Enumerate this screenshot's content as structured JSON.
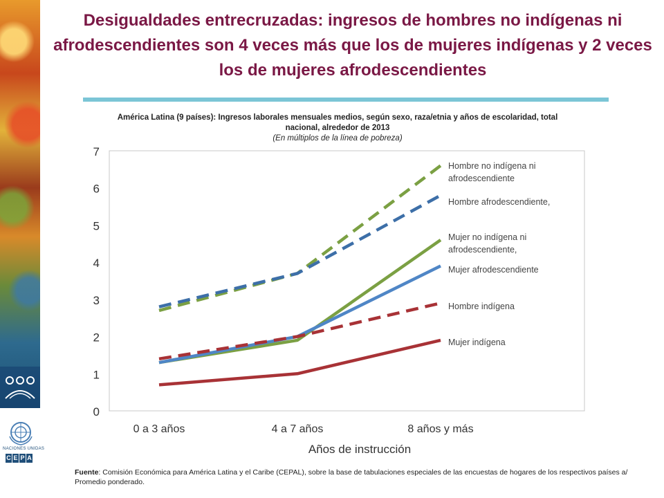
{
  "title": "Desigualdades entrecruzadas: ingresos de hombres no indígenas ni afrodescendientes son 4 veces más que los de mujeres indígenas y 2 veces los de mujeres afrodescendientes",
  "subtitle": {
    "line": "América Latina (9 países): Ingresos laborales mensuales medios, según sexo, raza/etnia y años de escolaridad, total nacional, alrededor de 2013",
    "unit": "(En múltiplos de la línea de pobreza)"
  },
  "source": {
    "label": "Fuente",
    "text": ": Comisión Económica para América Latina y el Caribe (CEPAL), sobre la base de tabulaciones especiales de las encuestas de hogares de los respectivos países a/ Promedio ponderado."
  },
  "logos": {
    "un_text": "NACIONES UNIDAS",
    "cepal_letters": [
      "C",
      "E",
      "P",
      "A",
      "L"
    ]
  },
  "chart_data": {
    "type": "line",
    "categories": [
      "0 a 3 años",
      "4 a 7 años",
      "8 años y más"
    ],
    "xlabel": "Años de instrucción",
    "ylabel": "",
    "ylim": [
      0,
      7
    ],
    "yticks": [
      0,
      1,
      2,
      3,
      4,
      5,
      6,
      7
    ],
    "grid": false,
    "series": [
      {
        "name": "Hombre no indígena ni afrodescendiente",
        "values": [
          2.7,
          3.7,
          6.6
        ],
        "color": "#7ba043",
        "dashed": true
      },
      {
        "name": "Hombre afrodescendiente,",
        "values": [
          2.8,
          3.7,
          5.8
        ],
        "color": "#3d6fa8",
        "dashed": true
      },
      {
        "name": "Mujer no indígena ni afrodescendiente,",
        "values": [
          1.3,
          1.9,
          4.6
        ],
        "color": "#7ba043",
        "dashed": false
      },
      {
        "name": "Mujer afrodescendiente",
        "values": [
          1.3,
          2.0,
          3.9
        ],
        "color": "#4f86c6",
        "dashed": false
      },
      {
        "name": "Hombre indígena",
        "values": [
          1.4,
          2.0,
          2.9
        ],
        "color": "#a83236",
        "dashed": true
      },
      {
        "name": "Mujer indígena",
        "values": [
          0.7,
          1.0,
          1.9
        ],
        "color": "#a83236",
        "dashed": false
      }
    ]
  }
}
